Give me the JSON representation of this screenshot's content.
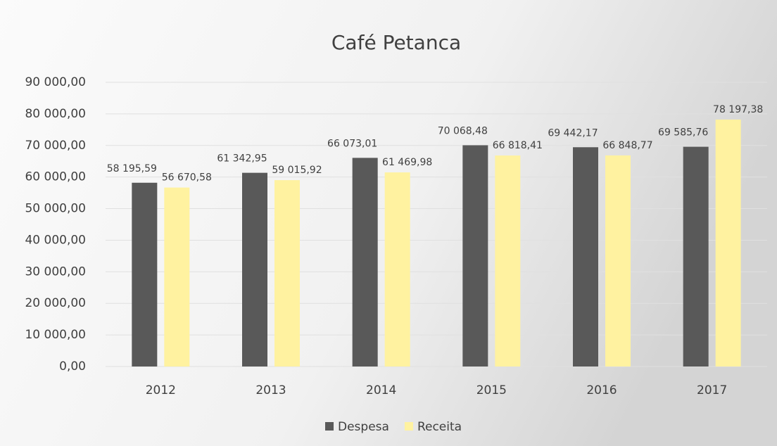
{
  "chart_data": {
    "type": "bar",
    "title": "Café Petanca",
    "categories": [
      "2012",
      "2013",
      "2014",
      "2015",
      "2016",
      "2017"
    ],
    "series": [
      {
        "name": "Despesa",
        "color": "#595959",
        "values": [
          58195.59,
          61342.95,
          66073.01,
          70068.48,
          69442.17,
          69585.76
        ],
        "value_labels": [
          "58 195,59",
          "61 342,95",
          "66 073,01",
          "70 068,48",
          "69 442,17",
          "69 585,76"
        ]
      },
      {
        "name": "Receita",
        "color": "#fff2a0",
        "values": [
          56670.58,
          59015.92,
          61469.98,
          66818.41,
          66848.77,
          78197.38
        ],
        "value_labels": [
          "56 670,58",
          "59 015,92",
          "61 469,98",
          "66 818,41",
          "66 848,77",
          "78 197,38"
        ]
      }
    ],
    "ylim": [
      0,
      90000
    ],
    "yticks": [
      {
        "value": 0,
        "label": "0,00"
      },
      {
        "value": 10000,
        "label": "10 000,00"
      },
      {
        "value": 20000,
        "label": "20 000,00"
      },
      {
        "value": 30000,
        "label": "30 000,00"
      },
      {
        "value": 40000,
        "label": "40 000,00"
      },
      {
        "value": 50000,
        "label": "50 000,00"
      },
      {
        "value": 60000,
        "label": "60 000,00"
      },
      {
        "value": 70000,
        "label": "70 000,00"
      },
      {
        "value": 80000,
        "label": "80 000,00"
      },
      {
        "value": 90000,
        "label": "90 000,00"
      }
    ],
    "grid": true,
    "legend": "bottom"
  }
}
